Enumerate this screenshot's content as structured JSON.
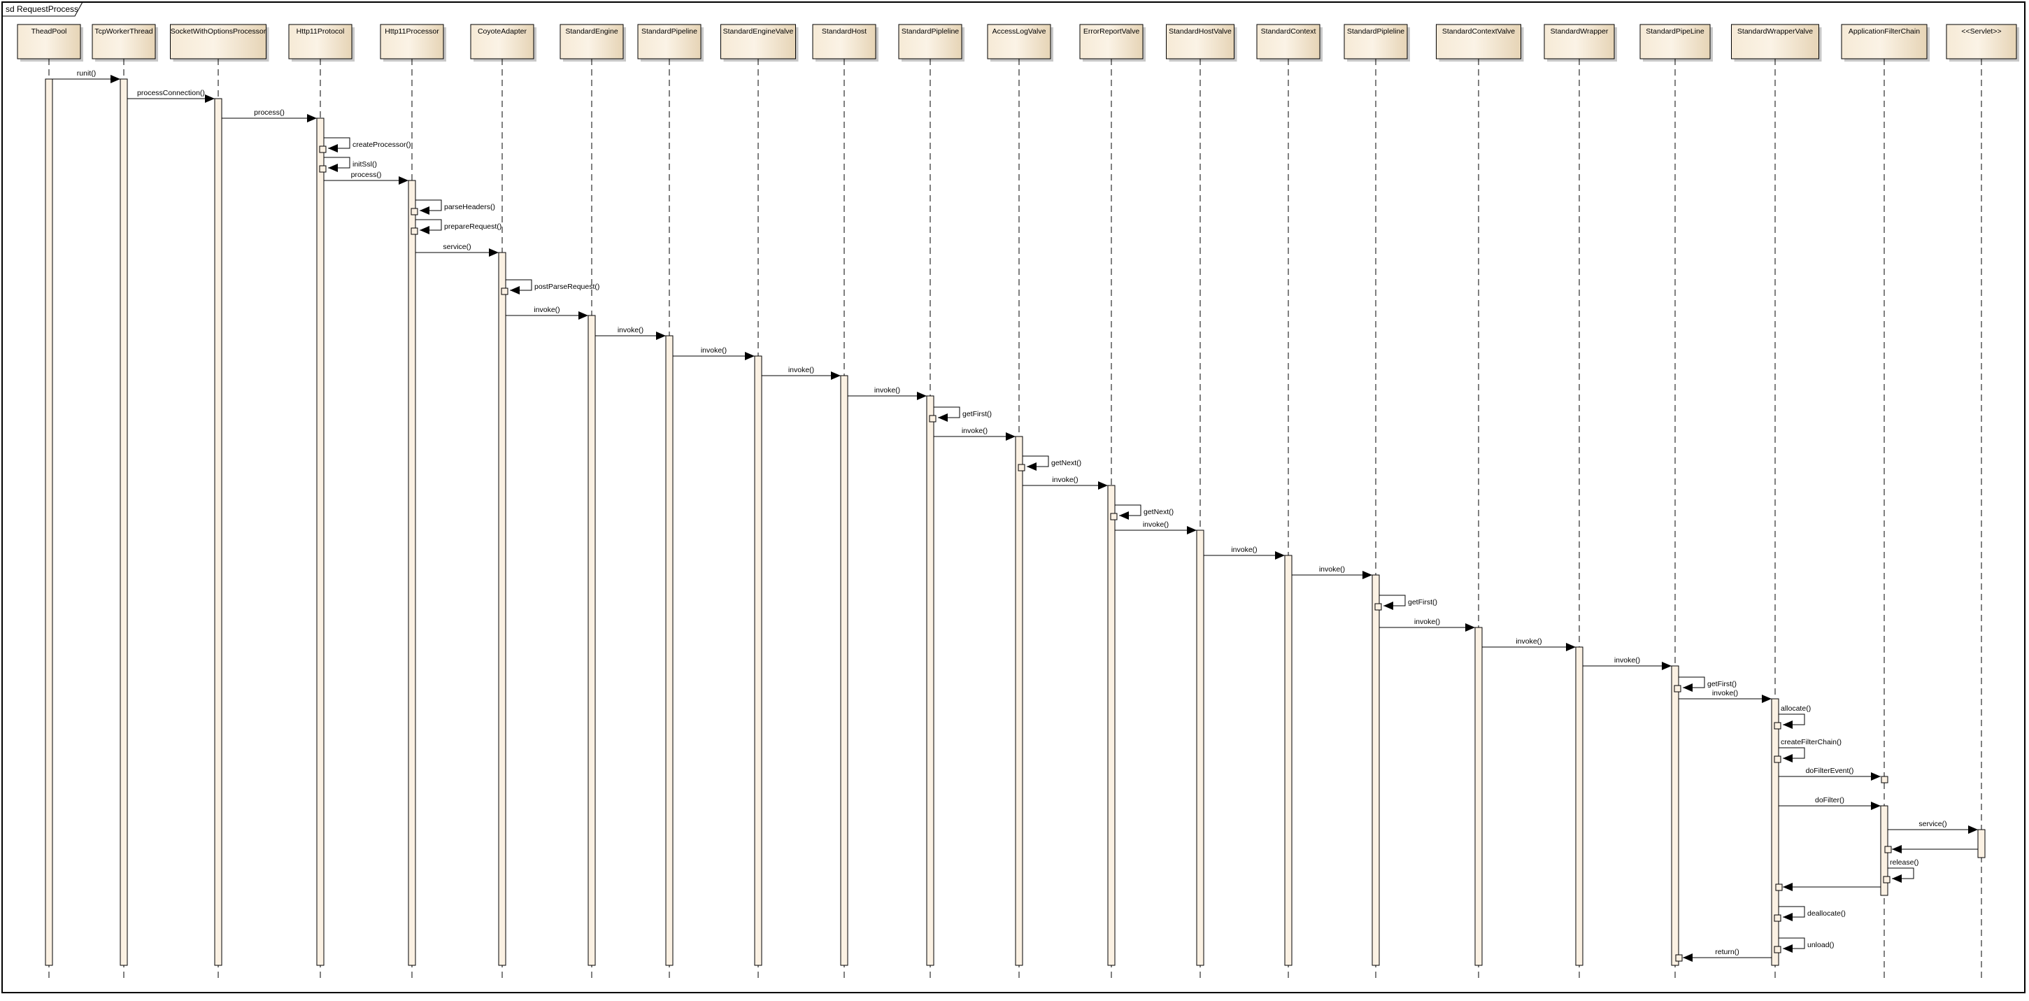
{
  "frame": {
    "title": "sd RequestProcess"
  },
  "colors": {
    "box_light": "#fbf3e6",
    "box_dark": "#e6d4b6",
    "activation": "#fbf1e3",
    "line": "#000000",
    "shadow": "#c8c8c8"
  },
  "lifelines": [
    {
      "name": "TheadPool"
    },
    {
      "name": "TcpWorkerThread"
    },
    {
      "name": "SocketWithOptionsProcessor"
    },
    {
      "name": "Http11Protocol"
    },
    {
      "name": "Http11Processor"
    },
    {
      "name": "CoyoteAdapter"
    },
    {
      "name": "StandardEngine"
    },
    {
      "name": "StandardPipeline"
    },
    {
      "name": "StandardEngineValve"
    },
    {
      "name": "StandardHost"
    },
    {
      "name": "StandardPipleline"
    },
    {
      "name": "AccessLogValve"
    },
    {
      "name": "ErrorReportValve"
    },
    {
      "name": "StandardHostValve"
    },
    {
      "name": "StandardContext"
    },
    {
      "name": "StandardPipleline"
    },
    {
      "name": "StandardContextValve"
    },
    {
      "name": "StandardWrapper"
    },
    {
      "name": "StandardPipeLine"
    },
    {
      "name": "StandardWrapperValve"
    },
    {
      "name": "ApplicationFilterChain"
    },
    {
      "name": "<<Servlet>>"
    }
  ],
  "messages": [
    {
      "from": 0,
      "to": 1,
      "label": "runit()"
    },
    {
      "from": 1,
      "to": 2,
      "label": "processConnection()"
    },
    {
      "from": 2,
      "to": 3,
      "label": "process()"
    },
    {
      "from": 3,
      "to": 3,
      "label": "createProcessor()"
    },
    {
      "from": 3,
      "to": 3,
      "label": "initSsl()"
    },
    {
      "from": 3,
      "to": 4,
      "label": "process()"
    },
    {
      "from": 4,
      "to": 4,
      "label": "parseHeaders()"
    },
    {
      "from": 4,
      "to": 4,
      "label": "prepareRequest()"
    },
    {
      "from": 4,
      "to": 5,
      "label": "service()"
    },
    {
      "from": 5,
      "to": 5,
      "label": "postParseRequest()"
    },
    {
      "from": 5,
      "to": 6,
      "label": "invoke()"
    },
    {
      "from": 6,
      "to": 7,
      "label": "invoke()"
    },
    {
      "from": 7,
      "to": 8,
      "label": "invoke()"
    },
    {
      "from": 8,
      "to": 9,
      "label": "invoke()"
    },
    {
      "from": 9,
      "to": 10,
      "label": "invoke()"
    },
    {
      "from": 10,
      "to": 10,
      "label": "getFirst()"
    },
    {
      "from": 10,
      "to": 11,
      "label": "invoke()"
    },
    {
      "from": 11,
      "to": 11,
      "label": "getNext()"
    },
    {
      "from": 11,
      "to": 12,
      "label": "invoke()"
    },
    {
      "from": 12,
      "to": 12,
      "label": "getNext()"
    },
    {
      "from": 12,
      "to": 13,
      "label": "invoke()"
    },
    {
      "from": 13,
      "to": 14,
      "label": "invoke()"
    },
    {
      "from": 14,
      "to": 15,
      "label": "invoke()"
    },
    {
      "from": 15,
      "to": 15,
      "label": "getFirst()"
    },
    {
      "from": 15,
      "to": 16,
      "label": "invoke()"
    },
    {
      "from": 16,
      "to": 17,
      "label": "invoke()"
    },
    {
      "from": 17,
      "to": 18,
      "label": "invoke()"
    },
    {
      "from": 18,
      "to": 18,
      "label": "getFirst()"
    },
    {
      "from": 18,
      "to": 19,
      "label": "invoke()"
    },
    {
      "from": 19,
      "to": 19,
      "label": "allocate()"
    },
    {
      "from": 19,
      "to": 19,
      "label": "createFilterChain()"
    },
    {
      "from": 19,
      "to": 20,
      "label": "doFilterEvent()"
    },
    {
      "from": 19,
      "to": 20,
      "label": "doFilter()"
    },
    {
      "from": 20,
      "to": 21,
      "label": "service()"
    },
    {
      "from": 21,
      "to": 20,
      "label": ""
    },
    {
      "from": 20,
      "to": 20,
      "label": "release()"
    },
    {
      "from": 20,
      "to": 19,
      "label": ""
    },
    {
      "from": 19,
      "to": 19,
      "label": "deallocate()"
    },
    {
      "from": 19,
      "to": 19,
      "label": "unload()"
    },
    {
      "from": 19,
      "to": 18,
      "label": "return()"
    }
  ]
}
